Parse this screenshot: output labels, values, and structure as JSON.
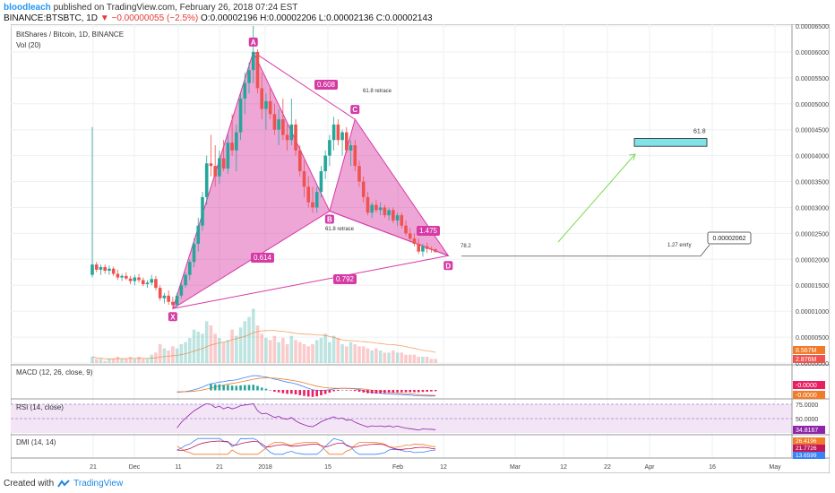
{
  "header": {
    "user": "bloodleach",
    "published": "published on TradingView.com, February 26, 2018 07:24 EST",
    "symbol": "BINANCE:BTSBTC, 1D",
    "change": "▼ −0.00000055 (−2.5%)",
    "ohlc": "O:0.00002196 H:0.00002206 L:0.00002136 C:0.00002143"
  },
  "footer": {
    "created": "Created with",
    "brand": "TradingView"
  },
  "colors": {
    "up": "#26a69a",
    "down": "#ef5350",
    "pattern": "#d63aa5",
    "arrow": "#7ed957",
    "box": "#7fe3e8",
    "macd": "#3b82f6",
    "signal": "#f07b28",
    "rsi": "#8e24aa",
    "dmi_plus": "#3b82f6",
    "dmi_minus": "#f07b28",
    "adx": "#c2185b"
  },
  "chart_data": {
    "type": "candlestick",
    "title": "BitShares / Bitcoin, 1D, BINANCE",
    "vol_label": "Vol (20)",
    "x_ticks": [
      "21",
      "Dec",
      "11",
      "21",
      "2018",
      "15",
      "Feb",
      "12",
      "Mar",
      "12",
      "22",
      "Apr",
      "16",
      "May"
    ],
    "y_ticks": [
      "0.00006500",
      "0.00006000",
      "0.00005500",
      "0.00005000",
      "0.00004500",
      "0.00004000",
      "0.00003500",
      "0.00003000",
      "0.00002500",
      "0.00002000",
      "0.00001500",
      "0.00001000",
      "0.00000500",
      "0.00000000"
    ],
    "ylim": [
      0,
      6.5e-05
    ],
    "candles": [
      [
        1.7e-05,
        4.55e-05,
        1.65e-05,
        1.9e-05
      ],
      [
        1.9e-05,
        1.95e-05,
        1.75e-05,
        1.8e-05
      ],
      [
        1.8e-05,
        1.9e-05,
        1.7e-05,
        1.85e-05
      ],
      [
        1.85e-05,
        1.9e-05,
        1.72e-05,
        1.78e-05
      ],
      [
        1.78e-05,
        1.88e-05,
        1.7e-05,
        1.82e-05
      ],
      [
        1.82e-05,
        1.86e-05,
        1.68e-05,
        1.72e-05
      ],
      [
        1.72e-05,
        1.8e-05,
        1.6e-05,
        1.65e-05
      ],
      [
        1.65e-05,
        1.72e-05,
        1.58e-05,
        1.68e-05
      ],
      [
        1.68e-05,
        1.75e-05,
        1.6e-05,
        1.63e-05
      ],
      [
        1.63e-05,
        1.68e-05,
        1.52e-05,
        1.58e-05
      ],
      [
        1.58e-05,
        1.7e-05,
        1.5e-05,
        1.65e-05
      ],
      [
        1.65e-05,
        1.72e-05,
        1.55e-05,
        1.6e-05
      ],
      [
        1.6e-05,
        1.65e-05,
        1.48e-05,
        1.52e-05
      ],
      [
        1.52e-05,
        1.6e-05,
        1.45e-05,
        1.55e-05
      ],
      [
        1.55e-05,
        1.7e-05,
        1.5e-05,
        1.62e-05
      ],
      [
        1.62e-05,
        1.68e-05,
        1.4e-05,
        1.45e-05
      ],
      [
        1.45e-05,
        1.5e-05,
        1.2e-05,
        1.25e-05
      ],
      [
        1.25e-05,
        1.35e-05,
        1.15e-05,
        1.3e-05
      ],
      [
        1.3e-05,
        1.4e-05,
        1.12e-05,
        1.18e-05
      ],
      [
        1.18e-05,
        1.28e-05,
        1.05e-05,
        1.12e-05
      ],
      [
        1.12e-05,
        1.35e-05,
        1.08e-05,
        1.3e-05
      ],
      [
        1.3e-05,
        1.55e-05,
        1.25e-05,
        1.5e-05
      ],
      [
        1.5e-05,
        1.75e-05,
        1.45e-05,
        1.7e-05
      ],
      [
        1.7e-05,
        2e-05,
        1.6e-05,
        1.95e-05
      ],
      [
        1.95e-05,
        2.4e-05,
        1.85e-05,
        2.3e-05
      ],
      [
        2.3e-05,
        2.8e-05,
        2.15e-05,
        2.65e-05
      ],
      [
        2.65e-05,
        3.3e-05,
        2.55e-05,
        3.2e-05
      ],
      [
        3.2e-05,
        4e-05,
        3.05e-05,
        3.85e-05
      ],
      [
        3.85e-05,
        4.4e-05,
        3.6e-05,
        3.8e-05
      ],
      [
        3.8e-05,
        4.2e-05,
        3.4e-05,
        3.6e-05
      ],
      [
        3.6e-05,
        4.1e-05,
        3.45e-05,
        3.95e-05
      ],
      [
        3.95e-05,
        4.3e-05,
        3.7e-05,
        3.75e-05
      ],
      [
        3.75e-05,
        4.4e-05,
        3.65e-05,
        4.25e-05
      ],
      [
        4.25e-05,
        4.8e-05,
        4e-05,
        4.1e-05
      ],
      [
        4.1e-05,
        4.6e-05,
        3.7e-05,
        4.45e-05
      ],
      [
        4.45e-05,
        5.2e-05,
        4.3e-05,
        5.1e-05
      ],
      [
        5.1e-05,
        5.6e-05,
        4.8e-05,
        5.4e-05
      ],
      [
        5.4e-05,
        5.8e-05,
        5.2e-05,
        5.65e-05
      ],
      [
        5.65e-05,
        6.5e-05,
        5.4e-05,
        6e-05
      ],
      [
        6e-05,
        6.05e-05,
        5.2e-05,
        5.3e-05
      ],
      [
        5.3e-05,
        5.6e-05,
        4.7e-05,
        4.9e-05
      ],
      [
        4.9e-05,
        5.2e-05,
        4.5e-05,
        5.05e-05
      ],
      [
        5.05e-05,
        5.3e-05,
        4.7e-05,
        4.8e-05
      ],
      [
        4.8e-05,
        5e-05,
        4.4e-05,
        4.5e-05
      ],
      [
        4.5e-05,
        4.9e-05,
        4.2e-05,
        4.7e-05
      ],
      [
        4.7e-05,
        5.1e-05,
        4.3e-05,
        4.4e-05
      ],
      [
        4.4e-05,
        4.6e-05,
        4.1e-05,
        4.3e-05
      ],
      [
        4.3e-05,
        5.1e-05,
        4.2e-05,
        4.6e-05
      ],
      [
        4.6e-05,
        4.7e-05,
        4e-05,
        4.1e-05
      ],
      [
        4.1e-05,
        4.2e-05,
        3.6e-05,
        3.7e-05
      ],
      [
        3.7e-05,
        3.9e-05,
        3.2e-05,
        3.4e-05
      ],
      [
        3.4e-05,
        3.6e-05,
        3e-05,
        3.1e-05
      ],
      [
        3.1e-05,
        3.4e-05,
        2.9e-05,
        3e-05
      ],
      [
        3e-05,
        3.4e-05,
        2.9e-05,
        3.3e-05
      ],
      [
        3.3e-05,
        3.8e-05,
        3.2e-05,
        3.7e-05
      ],
      [
        3.7e-05,
        4.1e-05,
        3.55e-05,
        4e-05
      ],
      [
        4e-05,
        4.4e-05,
        3.8e-05,
        4.3e-05
      ],
      [
        4.3e-05,
        4.75e-05,
        4.1e-05,
        4.6e-05
      ],
      [
        4.6e-05,
        4.7e-05,
        4.2e-05,
        4.3e-05
      ],
      [
        4.3e-05,
        4.5e-05,
        4e-05,
        4.45e-05
      ],
      [
        4.45e-05,
        4.55e-05,
        4.05e-05,
        4.1e-05
      ],
      [
        4.1e-05,
        4.3e-05,
        3.8e-05,
        4.2e-05
      ],
      [
        4.2e-05,
        4.3e-05,
        3.7e-05,
        3.8e-05
      ],
      [
        3.8e-05,
        3.9e-05,
        3.4e-05,
        3.5e-05
      ],
      [
        3.5e-05,
        3.6e-05,
        3.1e-05,
        3.2e-05
      ],
      [
        3.2e-05,
        3.3e-05,
        2.85e-05,
        2.9e-05
      ],
      [
        2.9e-05,
        3.1e-05,
        2.8e-05,
        3.05e-05
      ],
      [
        3.05e-05,
        3.15e-05,
        2.9e-05,
        2.95e-05
      ],
      [
        2.95e-05,
        3.1e-05,
        2.85e-05,
        3e-05
      ],
      [
        3e-05,
        3.05e-05,
        2.8e-05,
        2.85e-05
      ],
      [
        2.85e-05,
        3e-05,
        2.75e-05,
        2.95e-05
      ],
      [
        2.95e-05,
        3e-05,
        2.7e-05,
        2.75e-05
      ],
      [
        2.75e-05,
        2.9e-05,
        2.65e-05,
        2.85e-05
      ],
      [
        2.85e-05,
        2.9e-05,
        2.6e-05,
        2.65e-05
      ],
      [
        2.65e-05,
        2.75e-05,
        2.45e-05,
        2.5e-05
      ],
      [
        2.5e-05,
        2.6e-05,
        2.35e-05,
        2.4e-05
      ],
      [
        2.4e-05,
        2.5e-05,
        2.25e-05,
        2.3e-05
      ],
      [
        2.3e-05,
        2.4e-05,
        2.1e-05,
        2.15e-05
      ],
      [
        2.15e-05,
        2.3e-05,
        2.05e-05,
        2.25e-05
      ],
      [
        2.25e-05,
        2.32e-05,
        2.12e-05,
        2.2e-05
      ],
      [
        2.2e-05,
        2.25e-05,
        2.13e-05,
        2.19e-05
      ],
      [
        2.19e-05,
        2.21e-05,
        2.13e-05,
        2.14e-05
      ]
    ],
    "volume": [
      3,
      2,
      2,
      1,
      2,
      2,
      3,
      2,
      2,
      3,
      2,
      3,
      2,
      2,
      4,
      5,
      9,
      7,
      6,
      8,
      7,
      9,
      10,
      12,
      16,
      15,
      14,
      20,
      18,
      14,
      12,
      10,
      11,
      16,
      13,
      17,
      20,
      22,
      26,
      18,
      14,
      12,
      11,
      13,
      10,
      12,
      9,
      13,
      11,
      10,
      9,
      8,
      9,
      11,
      12,
      14,
      10,
      13,
      12,
      9,
      8,
      10,
      9,
      8,
      8,
      7,
      6,
      7,
      6,
      5,
      5,
      6,
      5,
      5,
      4,
      4,
      4,
      3,
      3,
      3,
      2,
      2
    ],
    "volume_last_label": "8.567M",
    "volume_ma_label": "2.876M",
    "macd_label": "MACD (12, 26, close, 9)",
    "macd_values": [
      "-0.0000",
      "-0.0000"
    ],
    "rsi_label": "RSI (14, close)",
    "rsi_ticks": [
      "75.0000",
      "50.0000"
    ],
    "rsi_value": "34.8167",
    "dmi_label": "DMI (14, 14)",
    "dmi_values": [
      "26.4196",
      "21.7726",
      "13.6599"
    ],
    "pattern": {
      "points": {
        "X": {
          "i": 19,
          "y": 1.05e-05
        },
        "A": {
          "i": 38,
          "y": 6e-05
        },
        "B": {
          "i": 56,
          "y": 2.93e-05
        },
        "C": {
          "i": 62,
          "y": 4.7e-05
        },
        "D": {
          "i": 84,
          "y": 2.07e-05
        }
      },
      "ratios": [
        "0.614",
        "0.608",
        "1.475",
        "0.792"
      ],
      "annotations": [
        "61.8 retrace",
        "61.8 retrace",
        "78.2",
        "1.27 enrty"
      ],
      "target_label": "61.8",
      "target_box_price": [
        4.33e-05,
        4.18e-05
      ],
      "entry_price": "0.00002062"
    }
  }
}
